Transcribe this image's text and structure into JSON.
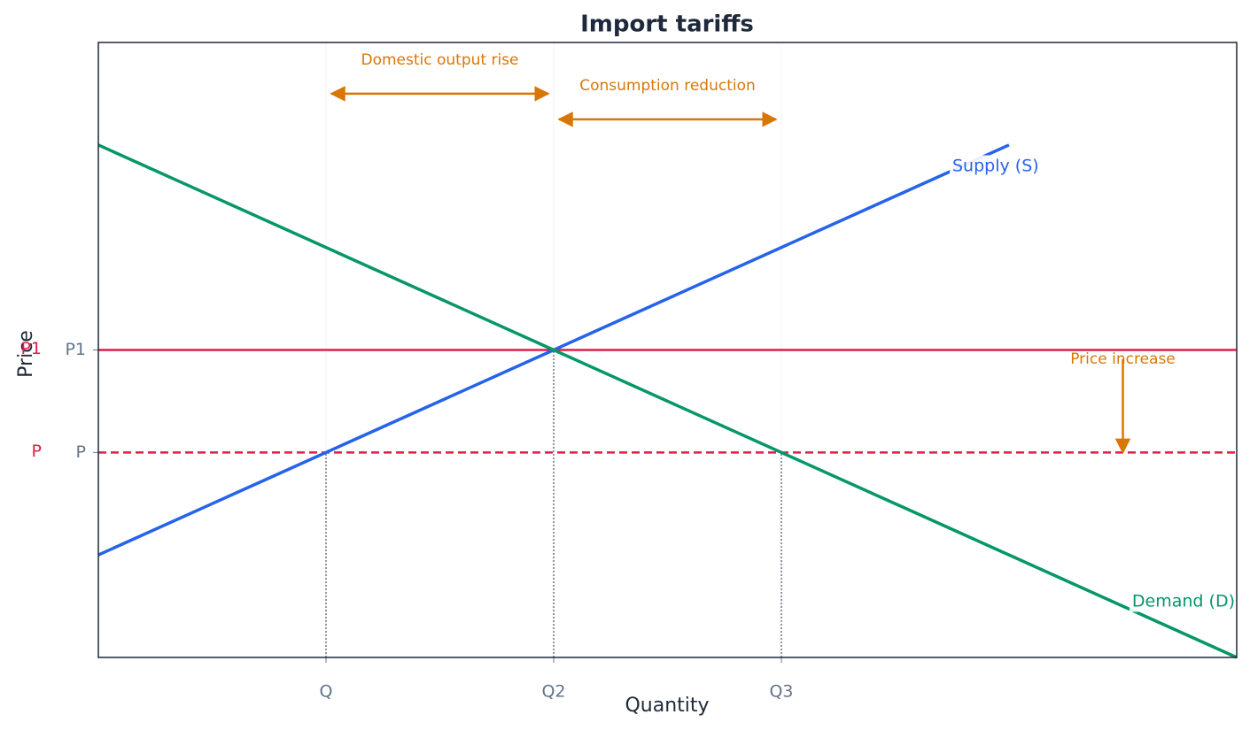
{
  "chart_data": {
    "type": "line",
    "title": "Import tariffs",
    "x_label": "Quantity",
    "y_label": "Price",
    "xlim": [
      0,
      5
    ],
    "ylim": [
      0,
      6
    ],
    "xticks": [
      {
        "value": 1,
        "label": "Q"
      },
      {
        "value": 2,
        "label": "Q2"
      },
      {
        "value": 3,
        "label": "Q3"
      }
    ],
    "yticks": [
      {
        "value": 2,
        "label": "P"
      },
      {
        "value": 3,
        "label": "P1"
      }
    ],
    "grid": true,
    "series": [
      {
        "name": "Supply (S)",
        "color": "#2563eb",
        "x": [
          0,
          4
        ],
        "values": [
          1,
          5
        ]
      },
      {
        "name": "Demand (D)",
        "color": "#059669",
        "x": [
          0,
          5
        ],
        "values": [
          5,
          0
        ]
      }
    ],
    "hlines": [
      {
        "label": "P1",
        "y": 3,
        "style": "solid",
        "color": "#e11d48"
      },
      {
        "label": "P",
        "y": 2,
        "style": "dashed",
        "color": "#e11d48"
      }
    ],
    "guides": [
      {
        "x": 1,
        "y": 2
      },
      {
        "x": 2,
        "y": 3
      },
      {
        "x": 3,
        "y": 2
      }
    ],
    "annotations": [
      {
        "text": "Domestic output rise",
        "x": [
          1,
          2
        ],
        "y": [
          5.5,
          5.5
        ]
      },
      {
        "text": "Consumption reduction",
        "x": [
          2,
          3
        ],
        "y": [
          5.25,
          5.25
        ]
      },
      {
        "text": "Price increase",
        "x": [
          4.5,
          4.5
        ],
        "y": [
          2.91,
          2
        ]
      }
    ],
    "annotation_color": "#d97706"
  }
}
